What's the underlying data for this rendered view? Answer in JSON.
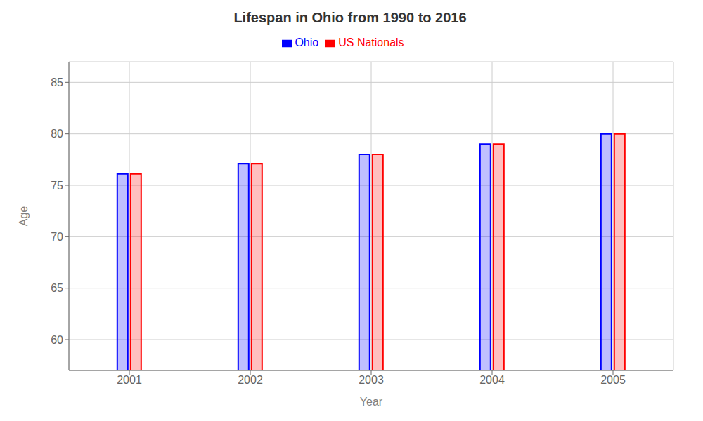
{
  "chart_data": {
    "type": "bar",
    "title": "Lifespan in Ohio from 1990 to 2016",
    "x_label": "Year",
    "y_label": "Age",
    "categories": [
      "2001",
      "2002",
      "2003",
      "2004",
      "2005"
    ],
    "series": [
      {
        "name": "Ohio",
        "color": "#0000ff",
        "values": [
          76.1,
          77.1,
          78.0,
          79.0,
          80.0
        ]
      },
      {
        "name": "US Nationals",
        "color": "#ff0000",
        "values": [
          76.1,
          77.1,
          78.0,
          79.0,
          80.0
        ]
      }
    ],
    "ylim": [
      57,
      87
    ],
    "yticks": [
      60,
      65,
      70,
      75,
      80,
      85
    ],
    "grid": true,
    "legend": "top"
  }
}
